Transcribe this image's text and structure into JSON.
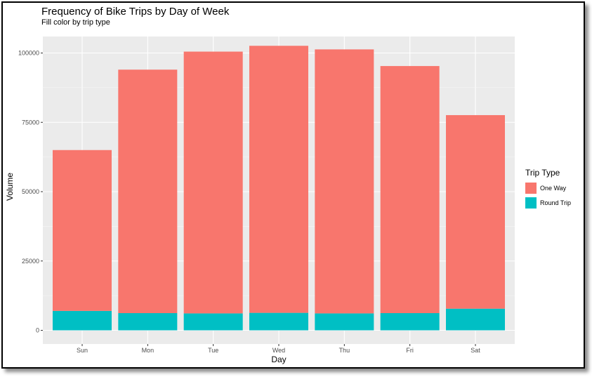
{
  "colors": {
    "one_way": "#F8766D",
    "round_trip": "#00BFC4",
    "panel": "#EBEBEB",
    "grid": "#FFFFFF"
  },
  "legend": {
    "title": "Trip Type",
    "items": [
      {
        "label": "One Way",
        "color": "#F8766D"
      },
      {
        "label": "Round Trip",
        "color": "#00BFC4"
      }
    ],
    "position": "right"
  },
  "chart_data": {
    "type": "bar",
    "stacked": true,
    "title": "Frequency of Bike Trips by Day of Week",
    "subtitle": "Fill color by trip type",
    "xlabel": "Day",
    "ylabel": "Volume",
    "categories": [
      "Sun",
      "Mon",
      "Tue",
      "Wed",
      "Thu",
      "Fri",
      "Sat"
    ],
    "series": [
      {
        "name": "One Way",
        "values": [
          58000,
          87800,
          94400,
          96300,
          95200,
          89100,
          69800
        ]
      },
      {
        "name": "Round Trip",
        "values": [
          7000,
          6200,
          6100,
          6300,
          6100,
          6200,
          7800
        ]
      }
    ],
    "ylim": [
      0,
      105000
    ],
    "yticks": [
      0,
      25000,
      50000,
      75000,
      100000
    ],
    "ytick_labels": [
      "0",
      "25000",
      "50000",
      "75000",
      "100000"
    ],
    "grid": true
  }
}
